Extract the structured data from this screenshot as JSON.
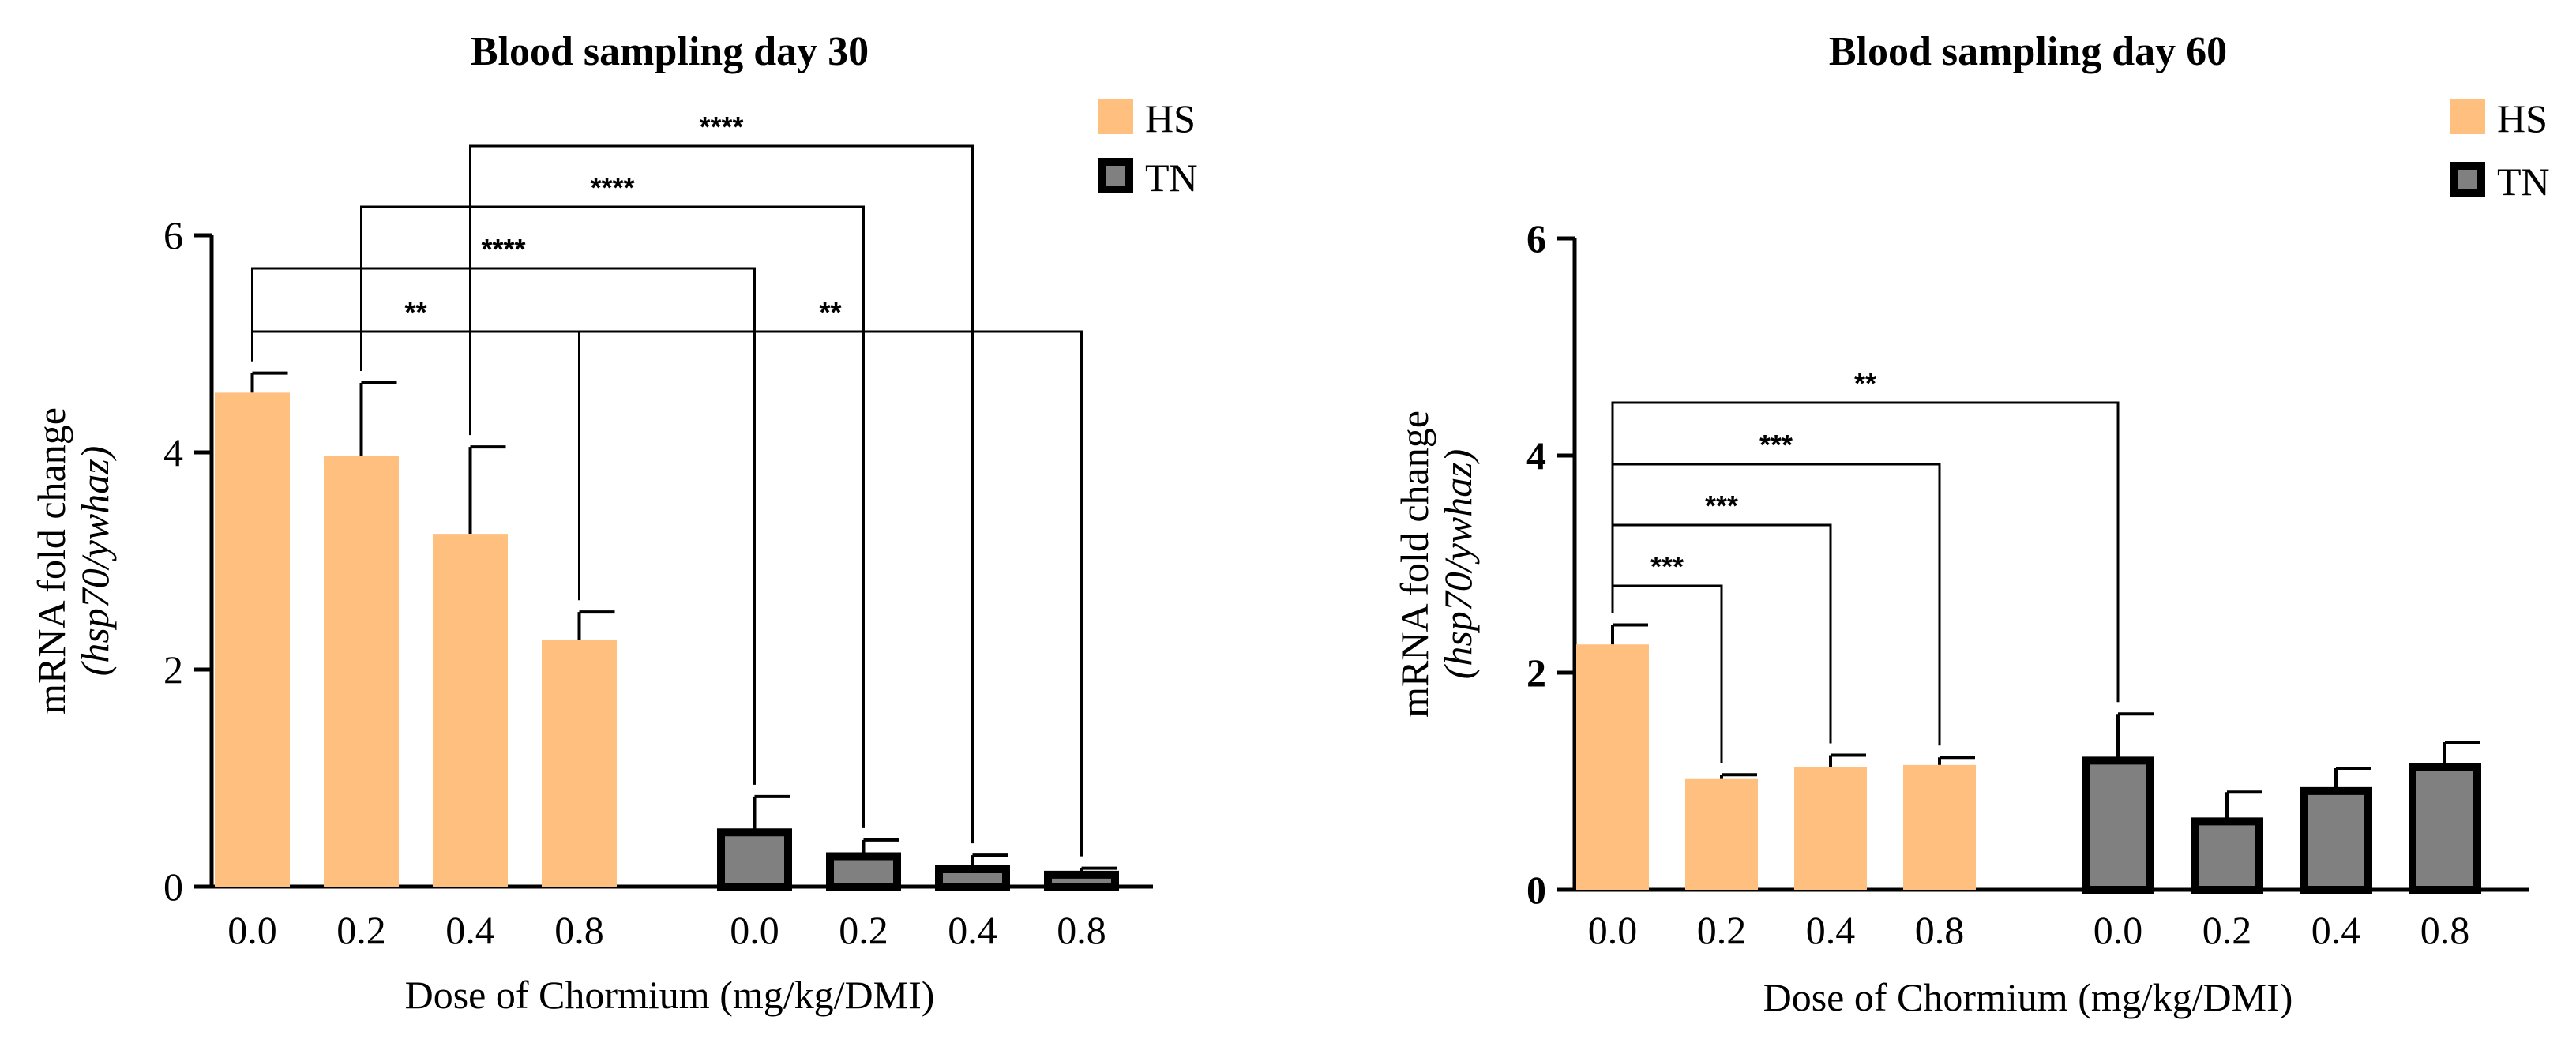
{
  "colors": {
    "hs_fill": "#FFC07F",
    "tn_fill": "#808080",
    "tn_stroke": "#000000",
    "axis": "#000000"
  },
  "chart_data": [
    {
      "type": "bar",
      "title": "Blood sampling day 30",
      "xlabel": "Dose of Chormium (mg/kg/DMI)",
      "ylabel": "mRNA fold change",
      "ylabel_sub": "(hsp70/ywhaz)",
      "ylim": [
        0,
        6
      ],
      "yticks": [
        "0",
        "2",
        "4",
        "6"
      ],
      "categories": [
        "0.0",
        "0.2",
        "0.4",
        "0.8"
      ],
      "series": [
        {
          "name": "HS",
          "values": [
            4.55,
            3.97,
            3.25,
            2.27
          ],
          "errors": [
            0.18,
            0.67,
            0.8,
            0.26
          ]
        },
        {
          "name": "TN",
          "values": [
            0.5,
            0.28,
            0.16,
            0.11
          ],
          "errors": [
            0.33,
            0.15,
            0.13,
            0.06
          ]
        }
      ],
      "legend": [
        "HS",
        "TN"
      ],
      "significance": [
        {
          "label": "**",
          "from": [
            0,
            0
          ],
          "to": [
            0,
            3
          ]
        },
        {
          "label": "****",
          "from": [
            0,
            0
          ],
          "to": [
            1,
            0
          ]
        },
        {
          "label": "****",
          "from": [
            0,
            1
          ],
          "to": [
            1,
            1
          ]
        },
        {
          "label": "****",
          "from": [
            0,
            2
          ],
          "to": [
            1,
            2
          ]
        },
        {
          "label": "**",
          "from": [
            0,
            3
          ],
          "to": [
            1,
            3
          ]
        }
      ]
    },
    {
      "type": "bar",
      "title": "Blood sampling day 60",
      "xlabel": "Dose of Chormium (mg/kg/DMI)",
      "ylabel": "mRNA fold change",
      "ylabel_sub": "(hsp70/ywhaz)",
      "ylim": [
        0,
        6
      ],
      "yticks": [
        "0",
        "2",
        "4",
        "6"
      ],
      "categories": [
        "0.0",
        "0.2",
        "0.4",
        "0.8"
      ],
      "series": [
        {
          "name": "HS",
          "values": [
            2.26,
            1.02,
            1.13,
            1.15
          ],
          "errors": [
            0.18,
            0.04,
            0.11,
            0.07
          ]
        },
        {
          "name": "TN",
          "values": [
            1.19,
            0.63,
            0.91,
            1.13
          ],
          "errors": [
            0.43,
            0.27,
            0.21,
            0.23
          ]
        }
      ],
      "legend": [
        "HS",
        "TN"
      ],
      "significance": [
        {
          "label": "***",
          "from": [
            0,
            0
          ],
          "to": [
            0,
            1
          ]
        },
        {
          "label": "***",
          "from": [
            0,
            0
          ],
          "to": [
            0,
            2
          ]
        },
        {
          "label": "***",
          "from": [
            0,
            0
          ],
          "to": [
            0,
            3
          ]
        },
        {
          "label": "**",
          "from": [
            0,
            0
          ],
          "to": [
            1,
            0
          ]
        }
      ]
    }
  ]
}
